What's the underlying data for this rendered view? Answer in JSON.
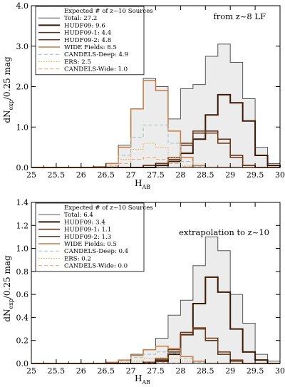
{
  "chart_data": [
    {
      "type": "step-histogram",
      "annotation": "from z~8 LF",
      "xlabel": "H",
      "xlabel_sub": "AB",
      "ylabel_main": "dN",
      "ylabel_sub": "exp",
      "ylabel_tail": "/0.25 mag",
      "xlim": [
        25,
        30
      ],
      "ylim": [
        0,
        4
      ],
      "xticks": [
        25,
        25.5,
        26,
        26.5,
        27,
        27.5,
        28,
        28.5,
        29,
        29.5,
        30
      ],
      "yticks": [
        0.0,
        1.0,
        2.0,
        3.0,
        4.0
      ],
      "bin_width": 0.25,
      "bin_start": 25.0,
      "legend_title": "Expected # of z~10 Sources",
      "series": [
        {
          "name": "Total: 27.2",
          "color": "#555555",
          "width": 1,
          "dash": "",
          "fill": true,
          "values": [
            0,
            0,
            0,
            0,
            0,
            0.02,
            0.1,
            0.55,
            1.45,
            2.2,
            2.0,
            1.2,
            1.95,
            2.05,
            2.75,
            3.05,
            2.6,
            1.7,
            0.5,
            0.1
          ]
        },
        {
          "name": "HUDF09: 9.6",
          "color": "#3a1a05",
          "width": 2,
          "dash": "",
          "values": [
            0,
            0,
            0,
            0,
            0,
            0,
            0,
            0,
            0,
            0,
            0.05,
            0.15,
            0.35,
            0.7,
            1.3,
            1.8,
            1.6,
            1.15,
            0.3,
            0.05
          ]
        },
        {
          "name": "HUDF09-1: 4.4",
          "color": "#5a2d10",
          "width": 1.5,
          "dash": "",
          "values": [
            0,
            0,
            0,
            0,
            0,
            0,
            0,
            0,
            0,
            0.05,
            0.1,
            0.2,
            0.55,
            0.85,
            0.9,
            0.7,
            0.3,
            0.05,
            0,
            0
          ]
        },
        {
          "name": "HUDF09-2: 4.8",
          "color": "#6b3818",
          "width": 1.5,
          "dash": "",
          "values": [
            0,
            0,
            0,
            0,
            0,
            0,
            0,
            0,
            0,
            0.05,
            0.1,
            0.25,
            0.6,
            0.9,
            0.85,
            0.6,
            0.25,
            0.05,
            0,
            0
          ]
        },
        {
          "name": "WIDE Fields: 8.5",
          "color": "#c57b43",
          "width": 1.5,
          "dash": "",
          "values": [
            0,
            0,
            0,
            0,
            0,
            0.02,
            0.1,
            0.5,
            1.45,
            2.15,
            1.9,
            0.9,
            0.25,
            0.05,
            0,
            0,
            0,
            0,
            0,
            0
          ]
        },
        {
          "name": "CANDELS-Deep: 4.9",
          "color": "#9fc2bd",
          "width": 1,
          "dash": "5,3",
          "values": [
            0,
            0,
            0,
            0,
            0,
            0,
            0.05,
            0.3,
            0.75,
            1.05,
            1.05,
            0.6,
            0.15,
            0.02,
            0,
            0,
            0,
            0,
            0,
            0
          ]
        },
        {
          "name": "ERS: 2.5",
          "color": "#e6a23c",
          "width": 1,
          "dash": "1.5,2",
          "values": [
            0,
            0,
            0,
            0,
            0,
            0,
            0.03,
            0.2,
            0.45,
            0.6,
            0.5,
            0.25,
            0.05,
            0,
            0,
            0,
            0,
            0,
            0,
            0
          ]
        },
        {
          "name": "CANDELS-Wide: 1.0",
          "color": "#f2a06a",
          "width": 1,
          "dash": "5,3",
          "values": [
            0,
            0,
            0,
            0,
            0,
            0,
            0.02,
            0.1,
            0.2,
            0.25,
            0.2,
            0.1,
            0.02,
            0,
            0,
            0,
            0,
            0,
            0,
            0
          ]
        }
      ]
    },
    {
      "type": "step-histogram",
      "annotation": "extrapolation to z~10",
      "xlabel": "H",
      "xlabel_sub": "AB",
      "ylabel_main": "dN",
      "ylabel_sub": "exp",
      "ylabel_tail": "/0.25 mag",
      "xlim": [
        25,
        30
      ],
      "ylim": [
        0,
        1.4
      ],
      "xticks": [
        25,
        25.5,
        26,
        26.5,
        27,
        27.5,
        28,
        28.5,
        29,
        29.5,
        30
      ],
      "yticks": [
        0.0,
        0.2,
        0.4,
        0.6,
        0.8,
        1.0,
        1.2,
        1.4
      ],
      "bin_width": 0.25,
      "bin_start": 25.0,
      "legend_title": "Expected # of z~10 Sources",
      "series": [
        {
          "name": "Total: 6.4",
          "color": "#555555",
          "width": 1,
          "dash": "",
          "fill": true,
          "values": [
            0,
            0,
            0,
            0,
            0,
            0,
            0.01,
            0.03,
            0.08,
            0.12,
            0.22,
            0.42,
            0.55,
            0.85,
            1.1,
            0.98,
            0.6,
            0.35,
            0.08,
            0.02
          ]
        },
        {
          "name": "HUDF09: 3.4",
          "color": "#3a1a05",
          "width": 2,
          "dash": "",
          "values": [
            0,
            0,
            0,
            0,
            0,
            0,
            0,
            0,
            0,
            0,
            0.02,
            0.08,
            0.25,
            0.52,
            0.75,
            0.62,
            0.3,
            0.1,
            0.03,
            0
          ]
        },
        {
          "name": "HUDF09-1: 1.1",
          "color": "#5a2d10",
          "width": 1.5,
          "dash": "",
          "values": [
            0,
            0,
            0,
            0,
            0,
            0,
            0,
            0,
            0,
            0.01,
            0.03,
            0.1,
            0.25,
            0.3,
            0.2,
            0.08,
            0.02,
            0,
            0,
            0
          ]
        },
        {
          "name": "HUDF09-2: 1.3",
          "color": "#6b3818",
          "width": 1.5,
          "dash": "",
          "values": [
            0,
            0,
            0,
            0,
            0,
            0,
            0,
            0,
            0,
            0.01,
            0.04,
            0.12,
            0.27,
            0.31,
            0.22,
            0.1,
            0.03,
            0,
            0,
            0
          ]
        },
        {
          "name": "WIDE Fields: 0.5",
          "color": "#c57b43",
          "width": 1.5,
          "dash": "",
          "values": [
            0,
            0,
            0,
            0,
            0,
            0,
            0.01,
            0.03,
            0.07,
            0.12,
            0.15,
            0.13,
            0.06,
            0.02,
            0,
            0,
            0,
            0,
            0,
            0
          ]
        },
        {
          "name": "CANDELS-Deep: 0.4",
          "color": "#9fc2bd",
          "width": 1,
          "dash": "5,3",
          "values": [
            0,
            0,
            0,
            0,
            0,
            0,
            0,
            0.02,
            0.05,
            0.08,
            0.1,
            0.09,
            0.04,
            0.01,
            0,
            0,
            0,
            0,
            0,
            0
          ]
        },
        {
          "name": "ERS: 0.2",
          "color": "#e6a23c",
          "width": 1,
          "dash": "1.5,2",
          "values": [
            0,
            0,
            0,
            0,
            0,
            0,
            0,
            0.01,
            0.02,
            0.04,
            0.05,
            0.04,
            0.02,
            0,
            0,
            0,
            0,
            0,
            0,
            0
          ]
        },
        {
          "name": "CANDELS-Wide: 0.0",
          "color": "#f2a06a",
          "width": 1,
          "dash": "5,3",
          "values": [
            0,
            0,
            0,
            0,
            0,
            0,
            0,
            0,
            0,
            0.005,
            0.01,
            0.005,
            0,
            0,
            0,
            0,
            0,
            0,
            0,
            0
          ]
        }
      ]
    }
  ]
}
